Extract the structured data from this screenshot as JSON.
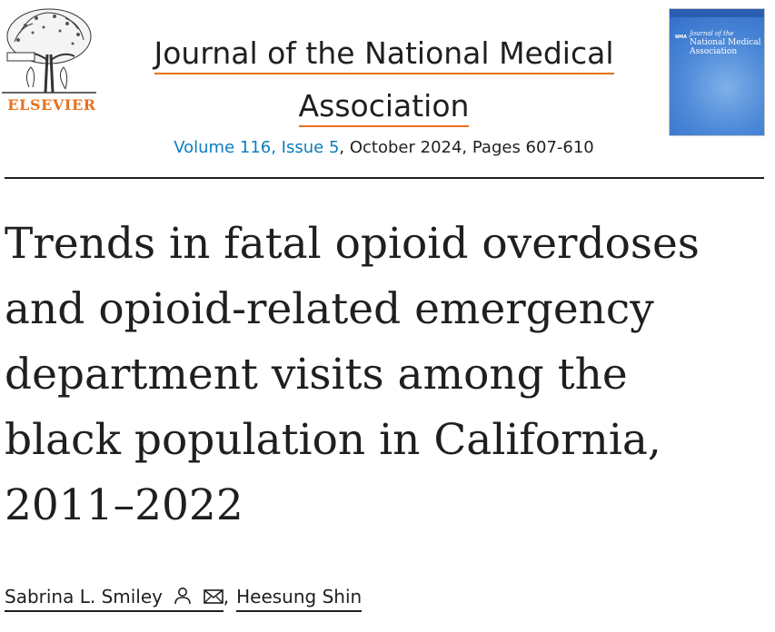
{
  "publisher": {
    "name": "ELSEVIER"
  },
  "journal": {
    "title": "Journal of the National Medical Association",
    "volume_issue": "Volume 116, Issue 5",
    "issue_details": ", October 2024, Pages 607-610"
  },
  "cover": {
    "nma_mark": "NMA",
    "title_prefix": "Journal of the",
    "title_main": "National Medical Association"
  },
  "article": {
    "title_lines": [
      "Trends in fatal opioid overdoses",
      "and opioid-related emergency",
      "department visits among the",
      "black population in California,",
      "2011–2022"
    ]
  },
  "authors": [
    {
      "name": "Sabrina L. Smiley",
      "icons": [
        "person-icon",
        "envelope-icon"
      ]
    },
    {
      "name": "Heesung Shin",
      "icons": []
    }
  ],
  "authors_separator": ",",
  "colors": {
    "accent_orange": "#e9711c",
    "link_blue": "#0c7dbb",
    "text": "#1f1f1f",
    "cover_blue": "#4e8ad8"
  }
}
